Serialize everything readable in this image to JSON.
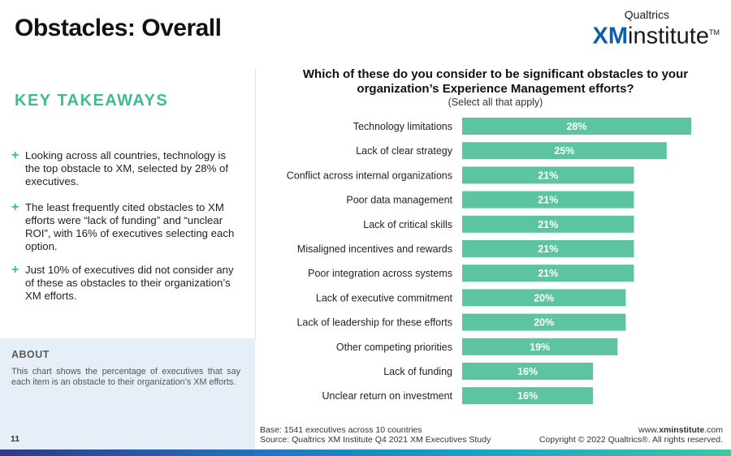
{
  "header": {
    "title": "Obstacles: Overall",
    "logo": {
      "top_text": "Qualtrics",
      "xm": "XM",
      "institute": "institute",
      "tm": "TM"
    }
  },
  "takeaways": {
    "heading": "KEY TAKEAWAYS",
    "items": [
      "Looking across all countries, technology is the top obstacle to XM, selected by 28% of executives.",
      "The least frequently cited obstacles to XM efforts were “lack of funding” and “unclear ROI”, with 16% of executives selecting each option.",
      "Just 10% of executives did not consider any of these as obstacles to their organization’s XM efforts."
    ]
  },
  "about": {
    "heading": "ABOUT",
    "text": "This chart shows the percentage of executives that say each item is an obstacle to their organization’s XM efforts."
  },
  "page_number": "11",
  "colors": {
    "accent": "#3fba93",
    "bar": "#5cc4a0",
    "about_bg": "#e6eef7",
    "logo_blue": "#0b5fb0"
  },
  "chart_data": {
    "type": "bar",
    "orientation": "horizontal",
    "title": "Which of these do you consider to be significant obstacles to your organization’s Experience Management efforts?",
    "subtitle": "(Select all that apply)",
    "categories": [
      "Technology limitations",
      "Lack of clear strategy",
      "Conflict across internal organizations",
      "Poor data management",
      "Lack of critical skills",
      "Misaligned incentives and rewards",
      "Poor integration across systems",
      "Lack of executive commitment",
      "Lack of leadership for these efforts",
      "Other competing priorities",
      "Lack of funding",
      "Unclear return on investment"
    ],
    "values": [
      28,
      25,
      21,
      21,
      21,
      21,
      21,
      20,
      20,
      19,
      16,
      16
    ],
    "value_labels": [
      "28%",
      "25%",
      "21%",
      "21%",
      "21%",
      "21%",
      "21%",
      "20%",
      "20%",
      "19%",
      "16%",
      "16%"
    ],
    "unit": "%",
    "xlim": [
      0,
      28
    ]
  },
  "footer": {
    "base": "Base: 1541 executives across 10 countries",
    "source": "Source: Qualtrics XM Institute Q4 2021 XM Executives Study",
    "website_prefix": "www.",
    "website_bold": "xminstitute",
    "website_suffix": ".com",
    "copyright": "Copyright © 2022 Qualtrics®. All rights reserved."
  }
}
